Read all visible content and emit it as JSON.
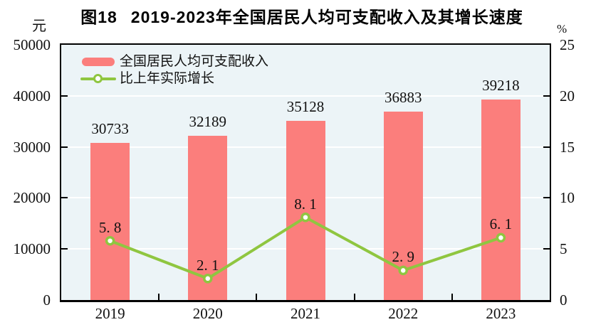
{
  "chart": {
    "figure_label": "图18",
    "title": "2019-2023年全国居民人均可支配收入及其增长速度",
    "left_axis": {
      "unit": "元"
    },
    "right_axis": {
      "unit": "%"
    },
    "legend": [
      {
        "type": "bar",
        "label": "全国居民人均可支配收入"
      },
      {
        "type": "line",
        "label": "比上年实际增长"
      }
    ]
  },
  "chart_data": {
    "type": "bar",
    "subtype": "bar+line combo, dual axis",
    "title": "图18 2019-2023年全国居民人均可支配收入及其增长速度",
    "categories": [
      "2019",
      "2020",
      "2021",
      "2022",
      "2023"
    ],
    "series": [
      {
        "name": "全国居民人均可支配收入",
        "type": "bar",
        "axis": "left",
        "values": [
          30733,
          32189,
          35128,
          36883,
          39218
        ],
        "labels": [
          "30733",
          "32189",
          "35128",
          "36883",
          "39218"
        ],
        "color": "#fb7e7c"
      },
      {
        "name": "比上年实际增长",
        "type": "line",
        "axis": "right",
        "values": [
          5.8,
          2.1,
          8.1,
          2.9,
          6.1
        ],
        "labels": [
          "5. 8",
          "2. 1",
          "8. 1",
          "2. 9",
          "6. 1"
        ],
        "color": "#8fc640",
        "marker": {
          "shape": "circle",
          "fill": "#ffffff",
          "stroke": "#8fc640"
        }
      }
    ],
    "xlabel": "",
    "ylabel_left": "元",
    "ylabel_right": "%",
    "ylim_left": [
      0,
      50000
    ],
    "yticks_left": [
      0,
      10000,
      20000,
      30000,
      40000,
      50000
    ],
    "ylim_right": [
      0,
      25
    ],
    "yticks_right": [
      0,
      5,
      10,
      15,
      20,
      25
    ],
    "grid": true,
    "gridline_color": "#ffffff",
    "plot_background": "#ecf4f7",
    "legend_position": "top-left inside plot"
  },
  "colors": {
    "bar": "#fb7e7c",
    "line": "#8fc640",
    "marker_fill": "#ffffff",
    "plot_bg": "#ecf4f7",
    "grid": "#ffffff",
    "axis": "#000000",
    "text": "#111111"
  }
}
